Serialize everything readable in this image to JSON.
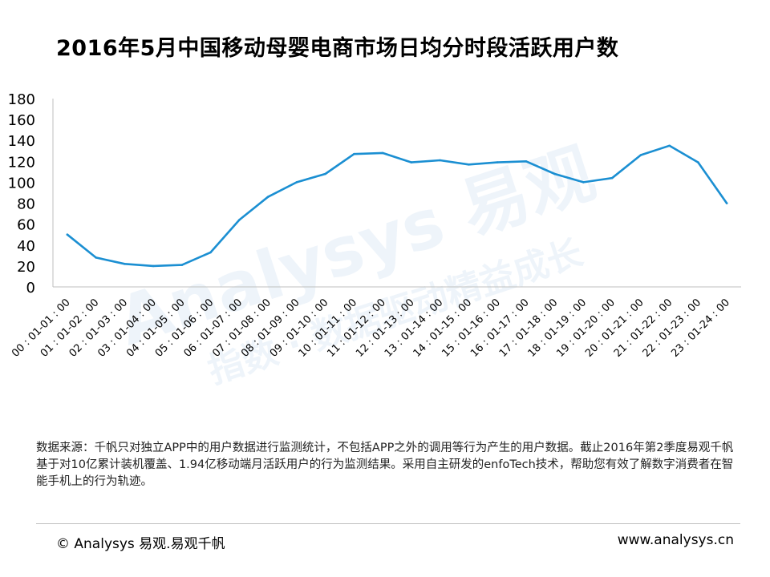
{
  "title": "2016年5月中国移动母婴电商市场日均分时段活跃用户数",
  "watermark": {
    "main": "Analysys 易观",
    "sub": "指数 · 数据驱动精益成长"
  },
  "chart_data": {
    "type": "line",
    "title": "2016年5月中国移动母婴电商市场日均分时段活跃用户数",
    "xlabel": "",
    "ylabel": "",
    "ylim": [
      0,
      180
    ],
    "yticks": [
      0,
      20,
      40,
      60,
      80,
      100,
      120,
      140,
      160,
      180
    ],
    "grid": false,
    "legend": "none",
    "categories": [
      "00 : 01-01 : 00",
      "01 : 01-02 : 00",
      "02 : 01-03 : 00",
      "03 : 01-04 : 00",
      "04 : 01-05 : 00",
      "05 : 01-06 : 00",
      "06 : 01-07 : 00",
      "07 : 01-08 : 00",
      "08 : 01-09 : 00",
      "09 : 01-10 : 00",
      "10 : 01-11 : 00",
      "11 : 01-12 : 00",
      "12 : 01-13 : 00",
      "13 : 01-14 : 00",
      "14 : 01-15 : 00",
      "15 : 01-16 : 00",
      "16 : 01-17 : 00",
      "17 : 01-18 : 00",
      "18 : 01-19 : 00",
      "19 : 01-20 : 00",
      "20 : 01-21 : 00",
      "21 : 01-22 : 00",
      "22 : 01-23 : 00",
      "23 : 01-24 : 00"
    ],
    "series": [
      {
        "values": [
          50,
          28,
          22,
          20,
          21,
          33,
          64,
          86,
          100,
          108,
          127,
          128,
          119,
          121,
          117,
          119,
          120,
          108,
          100,
          104,
          126,
          135,
          119,
          80
        ],
        "color": "#1b8fd2"
      }
    ]
  },
  "note": "数据来源：千帆只对独立APP中的用户数据进行监测统计，不包括APP之外的调用等行为产生的用户数据。截止2016年第2季度易观千帆基于对10亿累计装机覆盖、1.94亿移动端月活跃用户的行为监测结果。采用自主研发的enfoTech技术，帮助您有效了解数字消费者在智能手机上的行为轨迹。",
  "footer": {
    "left": "© Analysys 易观.易观千帆",
    "right": "www.analysys.cn"
  }
}
